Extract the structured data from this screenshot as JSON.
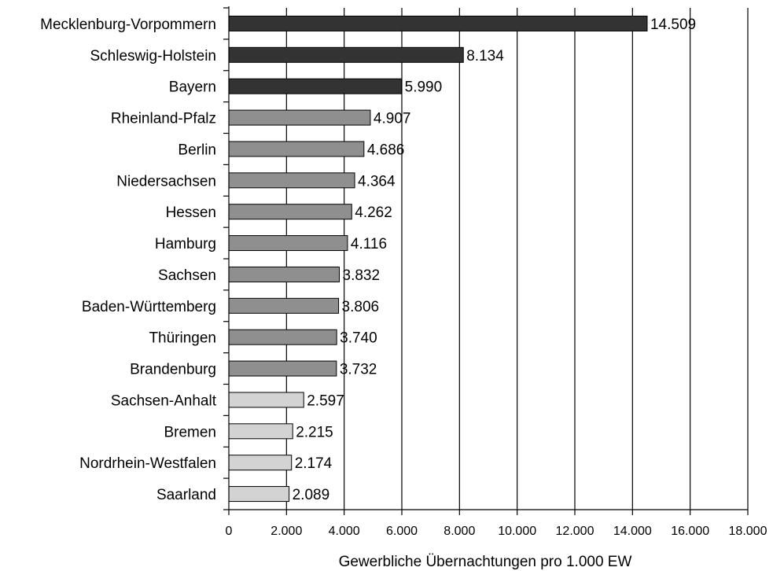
{
  "chart_data": {
    "type": "bar",
    "orientation": "horizontal",
    "title": "",
    "xlabel": "Gewerbliche Übernachtungen pro 1.000 EW",
    "ylabel": "",
    "xlim": [
      0,
      18000
    ],
    "x_ticks": [
      0,
      2000,
      4000,
      6000,
      8000,
      10000,
      12000,
      14000,
      16000,
      18000
    ],
    "x_tick_labels": [
      "0",
      "2.000",
      "4.000",
      "6.000",
      "8.000",
      "10.000",
      "12.000",
      "14.000",
      "16.000",
      "18.000"
    ],
    "grid": "vertical",
    "legend": "none",
    "colors": {
      "dark": "#333333",
      "medium": "#8f8f8f",
      "light": "#d3d3d3",
      "grid": "#000000"
    },
    "categories": [
      "Mecklenburg-Vorpommern",
      "Schleswig-Holstein",
      "Bayern",
      "Rheinland-Pfalz",
      "Berlin",
      "Niedersachsen",
      "Hessen",
      "Hamburg",
      "Sachsen",
      "Baden-Württemberg",
      "Thüringen",
      "Brandenburg",
      "Sachsen-Anhalt",
      "Bremen",
      "Nordrhein-Westfalen",
      "Saarland"
    ],
    "values": [
      14509,
      8134,
      5990,
      4907,
      4686,
      4364,
      4262,
      4116,
      3832,
      3806,
      3740,
      3732,
      2597,
      2215,
      2174,
      2089
    ],
    "value_labels": [
      "14.509",
      "8.134",
      "5.990",
      "4.907",
      "4.686",
      "4.364",
      "4.262",
      "4.116",
      "3.832",
      "3.806",
      "3.740",
      "3.732",
      "2.597",
      "2.215",
      "2.174",
      "2.089"
    ],
    "bar_shades": [
      "dark",
      "dark",
      "dark",
      "medium",
      "medium",
      "medium",
      "medium",
      "medium",
      "medium",
      "medium",
      "medium",
      "medium",
      "light",
      "light",
      "light",
      "light"
    ]
  }
}
